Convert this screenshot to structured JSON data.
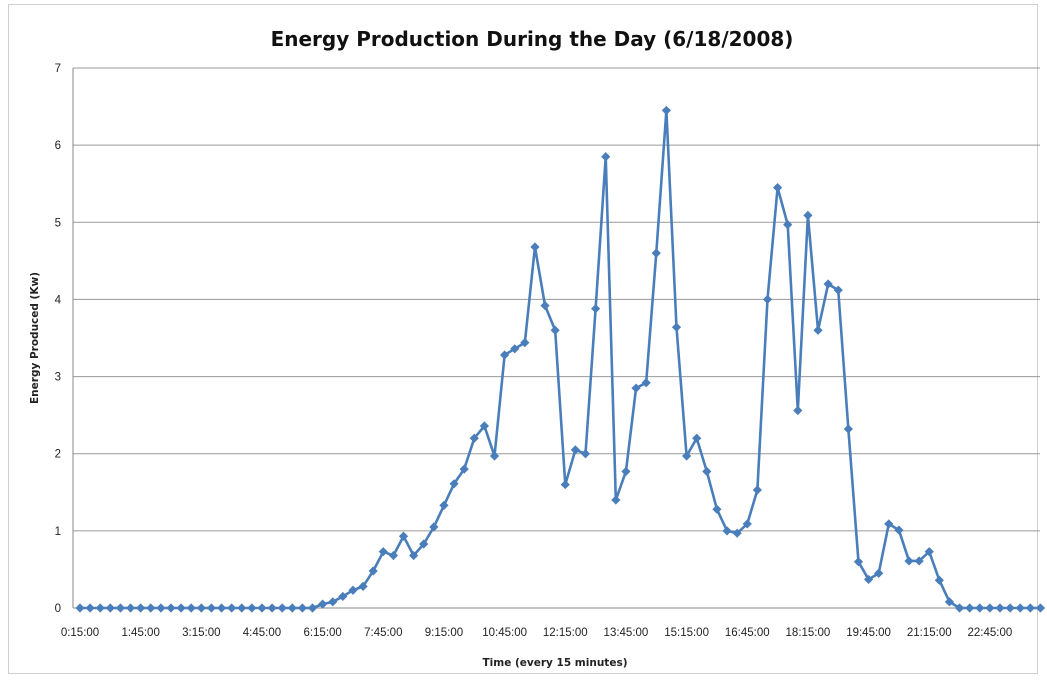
{
  "chart_data": {
    "type": "line",
    "title": "Energy Production During the Day (6/18/2008)",
    "xlabel": "Time (every 15 minutes)",
    "ylabel": "Energy Produced (Kw)",
    "ylim": [
      0,
      7
    ],
    "yticks": [
      "0",
      "1",
      "2",
      "3",
      "4",
      "5",
      "6",
      "7"
    ],
    "x_tick_labels": [
      "0:15:00",
      "1:45:00",
      "3:15:00",
      "4:45:00",
      "6:15:00",
      "7:45:00",
      "9:15:00",
      "10:45:00",
      "12:15:00",
      "13:45:00",
      "15:15:00",
      "16:45:00",
      "18:15:00",
      "19:45:00",
      "21:15:00",
      "22:45:00"
    ],
    "x_tick_every": 6,
    "grid": true,
    "legend": "none",
    "series": [
      {
        "color": "#4a7ebb",
        "marker": "diamond",
        "values": [
          0,
          0,
          0,
          0,
          0,
          0,
          0,
          0,
          0,
          0,
          0,
          0,
          0,
          0,
          0,
          0,
          0,
          0,
          0,
          0,
          0,
          0,
          0,
          0,
          0.05,
          0.08,
          0.15,
          0.23,
          0.28,
          0.48,
          0.73,
          0.68,
          0.93,
          0.68,
          0.83,
          1.05,
          1.33,
          1.61,
          1.8,
          2.2,
          2.36,
          1.97,
          3.28,
          3.36,
          3.44,
          4.68,
          3.92,
          3.6,
          1.6,
          2.05,
          2.0,
          3.88,
          5.85,
          1.4,
          1.77,
          2.85,
          2.92,
          4.6,
          6.45,
          3.64,
          1.97,
          2.2,
          1.77,
          1.28,
          1.0,
          0.97,
          1.09,
          1.53,
          4.0,
          5.45,
          4.97,
          2.56,
          5.09,
          3.6,
          4.2,
          4.12,
          2.32,
          0.6,
          0.37,
          0.45,
          1.09,
          1.01,
          0.61,
          0.61,
          0.73,
          0.36,
          0.08,
          0,
          0,
          0,
          0,
          0,
          0,
          0,
          0,
          0
        ]
      }
    ]
  }
}
